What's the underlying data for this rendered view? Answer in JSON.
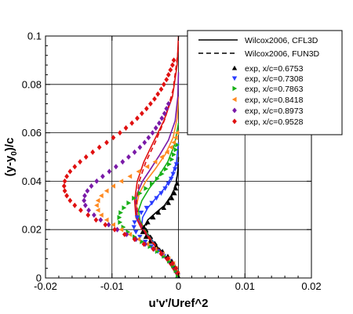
{
  "chart_data": {
    "type": "line",
    "title": "",
    "xlabel": "u'v'/Uref^2",
    "ylabel_parts": [
      "(y-y",
      "0",
      ")/c"
    ],
    "xlim": [
      -0.02,
      0.02
    ],
    "ylim": [
      0,
      0.1
    ],
    "xticks": [
      -0.02,
      -0.01,
      0,
      0.01,
      0.02
    ],
    "xtick_labels": [
      "-0.02",
      "-0.01",
      "0",
      "0.01",
      "0.02"
    ],
    "yticks": [
      0,
      0.02,
      0.04,
      0.06,
      0.08,
      0.1
    ],
    "ytick_labels": [
      "0",
      "0.02",
      "0.04",
      "0.06",
      "0.08",
      "0.1"
    ],
    "grid": true,
    "legend_position": "top-right",
    "series": [
      {
        "name": "exp, x/c=0.6753",
        "kind": "scatter",
        "marker": "triangle-up",
        "color": "#000000",
        "x": [
          -0.0001,
          -0.0003,
          -0.0006,
          -0.001,
          -0.0016,
          -0.0024,
          -0.0033,
          -0.0043,
          -0.0049,
          -0.0054,
          -0.0052,
          -0.0046,
          -0.0038,
          -0.003,
          -0.0022,
          -0.0015,
          -0.001,
          -0.0006,
          -0.0004,
          -0.0002
        ],
        "y": [
          0.001,
          0.003,
          0.005,
          0.007,
          0.009,
          0.011,
          0.013,
          0.015,
          0.017,
          0.019,
          0.021,
          0.023,
          0.025,
          0.027,
          0.029,
          0.031,
          0.033,
          0.035,
          0.037,
          0.039
        ]
      },
      {
        "name": "exp, x/c=0.7308",
        "kind": "scatter",
        "marker": "triangle-down",
        "color": "#2a3cff",
        "x": [
          -0.0001,
          -0.0004,
          -0.0008,
          -0.0014,
          -0.0022,
          -0.0031,
          -0.0041,
          -0.005,
          -0.0058,
          -0.0064,
          -0.0067,
          -0.0066,
          -0.0062,
          -0.0056,
          -0.0048,
          -0.004,
          -0.0033,
          -0.0026,
          -0.002,
          -0.0015,
          -0.0011,
          -0.0008,
          -0.0005,
          -0.0003
        ],
        "y": [
          0.001,
          0.003,
          0.005,
          0.007,
          0.009,
          0.011,
          0.013,
          0.015,
          0.017,
          0.019,
          0.021,
          0.023,
          0.025,
          0.027,
          0.029,
          0.031,
          0.033,
          0.035,
          0.037,
          0.039,
          0.041,
          0.043,
          0.045,
          0.047
        ]
      },
      {
        "name": "exp, x/c=0.7863",
        "kind": "scatter",
        "marker": "triangle-right",
        "color": "#18b018",
        "x": [
          -0.0001,
          -0.0004,
          -0.0008,
          -0.0014,
          -0.0022,
          -0.0032,
          -0.0043,
          -0.0055,
          -0.0066,
          -0.0076,
          -0.0083,
          -0.0088,
          -0.0089,
          -0.0087,
          -0.0082,
          -0.0075,
          -0.0067,
          -0.0058,
          -0.0049,
          -0.004,
          -0.0032,
          -0.0025,
          -0.0019,
          -0.0014,
          -0.001,
          -0.0007,
          -0.0004,
          -0.0002
        ],
        "y": [
          0.001,
          0.003,
          0.005,
          0.007,
          0.009,
          0.011,
          0.013,
          0.015,
          0.017,
          0.019,
          0.021,
          0.023,
          0.025,
          0.027,
          0.029,
          0.031,
          0.033,
          0.035,
          0.037,
          0.039,
          0.041,
          0.043,
          0.045,
          0.047,
          0.049,
          0.051,
          0.053,
          0.055
        ]
      },
      {
        "name": "exp, x/c=0.8418",
        "kind": "scatter",
        "marker": "triangle-left",
        "color": "#ff8a22",
        "x": [
          -0.0001,
          -0.0004,
          -0.0008,
          -0.0015,
          -0.0024,
          -0.0035,
          -0.0047,
          -0.006,
          -0.0073,
          -0.0086,
          -0.0098,
          -0.0108,
          -0.0116,
          -0.0121,
          -0.0123,
          -0.0121,
          -0.0116,
          -0.0108,
          -0.0098,
          -0.0086,
          -0.0073,
          -0.006,
          -0.0047,
          -0.0035,
          -0.0025,
          -0.0017,
          -0.0011,
          -0.0007,
          -0.0004,
          -0.0002
        ],
        "y": [
          0.002,
          0.004,
          0.006,
          0.008,
          0.01,
          0.012,
          0.014,
          0.016,
          0.018,
          0.02,
          0.022,
          0.024,
          0.026,
          0.028,
          0.03,
          0.032,
          0.034,
          0.036,
          0.038,
          0.04,
          0.042,
          0.044,
          0.046,
          0.048,
          0.05,
          0.052,
          0.054,
          0.056,
          0.058,
          0.06
        ]
      },
      {
        "name": "exp, x/c=0.8973",
        "kind": "scatter",
        "marker": "diamond",
        "color": "#7a1aa8",
        "x": [
          -0.0001,
          -0.0004,
          -0.0009,
          -0.0016,
          -0.0025,
          -0.0037,
          -0.005,
          -0.0064,
          -0.0078,
          -0.0092,
          -0.0105,
          -0.0117,
          -0.0127,
          -0.0135,
          -0.014,
          -0.0142,
          -0.0141,
          -0.0137,
          -0.0131,
          -0.0123,
          -0.0114,
          -0.0104,
          -0.0094,
          -0.0084,
          -0.0075,
          -0.0066,
          -0.0058,
          -0.0051,
          -0.0045,
          -0.0039,
          -0.0034,
          -0.0029,
          -0.0025,
          -0.0021,
          -0.0018,
          -0.0015
        ],
        "y": [
          0.002,
          0.004,
          0.006,
          0.008,
          0.01,
          0.012,
          0.014,
          0.016,
          0.018,
          0.02,
          0.022,
          0.024,
          0.026,
          0.028,
          0.03,
          0.032,
          0.034,
          0.036,
          0.038,
          0.04,
          0.042,
          0.044,
          0.046,
          0.048,
          0.05,
          0.052,
          0.054,
          0.056,
          0.058,
          0.06,
          0.062,
          0.064,
          0.066,
          0.068,
          0.07,
          0.072
        ]
      },
      {
        "name": "exp, x/c=0.9528",
        "kind": "scatter",
        "marker": "diamond",
        "color": "#e01010",
        "x": [
          -0.0001,
          -0.0004,
          -0.0009,
          -0.0016,
          -0.0026,
          -0.0038,
          -0.0052,
          -0.0066,
          -0.0081,
          -0.0096,
          -0.011,
          -0.0124,
          -0.0136,
          -0.0147,
          -0.0156,
          -0.0163,
          -0.0168,
          -0.0171,
          -0.0172,
          -0.0171,
          -0.0168,
          -0.0163,
          -0.0156,
          -0.0148,
          -0.0139,
          -0.0129,
          -0.0119,
          -0.0108,
          -0.0098,
          -0.0088,
          -0.0079,
          -0.007,
          -0.0062,
          -0.0055,
          -0.0048,
          -0.0042,
          -0.0036,
          -0.0031,
          -0.0026,
          -0.0022,
          -0.0018,
          -0.0015,
          -0.0012,
          -0.0009,
          -0.0007
        ],
        "y": [
          0.002,
          0.004,
          0.006,
          0.008,
          0.01,
          0.012,
          0.014,
          0.016,
          0.018,
          0.02,
          0.022,
          0.024,
          0.026,
          0.028,
          0.03,
          0.032,
          0.034,
          0.036,
          0.038,
          0.04,
          0.042,
          0.044,
          0.046,
          0.048,
          0.05,
          0.052,
          0.054,
          0.056,
          0.058,
          0.06,
          0.062,
          0.064,
          0.066,
          0.068,
          0.07,
          0.072,
          0.074,
          0.076,
          0.078,
          0.08,
          0.082,
          0.084,
          0.086,
          0.088,
          0.09
        ]
      },
      {
        "name": "Wilcox2006, CFL3D",
        "kind": "line",
        "dash": "solid",
        "color": "#000000",
        "group": [
          {
            "color": "#000000",
            "x": [
              0,
              -0.001,
              -0.0024,
              -0.0038,
              -0.0048,
              -0.0052,
              -0.0046,
              -0.0034,
              -0.0021,
              -0.0011,
              -0.0004,
              -0.0001,
              0
            ],
            "y": [
              0,
              0.005,
              0.01,
              0.015,
              0.019,
              0.021,
              0.024,
              0.027,
              0.03,
              0.034,
              0.038,
              0.044,
              0.05
            ]
          },
          {
            "color": "#2a3cff",
            "x": [
              0,
              -0.001,
              -0.0024,
              -0.0038,
              -0.0049,
              -0.0055,
              -0.0054,
              -0.0046,
              -0.0034,
              -0.0021,
              -0.001,
              -0.0003,
              0
            ],
            "y": [
              0,
              0.005,
              0.01,
              0.015,
              0.019,
              0.022,
              0.025,
              0.029,
              0.033,
              0.037,
              0.042,
              0.048,
              0.056
            ]
          },
          {
            "color": "#18b018",
            "x": [
              0,
              -0.001,
              -0.0024,
              -0.0039,
              -0.0051,
              -0.0058,
              -0.006,
              -0.0055,
              -0.0044,
              -0.003,
              -0.0016,
              -0.0006,
              0
            ],
            "y": [
              0,
              0.005,
              0.01,
              0.015,
              0.02,
              0.024,
              0.028,
              0.032,
              0.037,
              0.042,
              0.048,
              0.055,
              0.064
            ]
          },
          {
            "color": "#ff8a22",
            "x": [
              0,
              -0.0011,
              -0.0025,
              -0.004,
              -0.0053,
              -0.0061,
              -0.0063,
              -0.0059,
              -0.0049,
              -0.0035,
              -0.002,
              -0.0008,
              -0.0002,
              0
            ],
            "y": [
              0,
              0.005,
              0.01,
              0.015,
              0.02,
              0.025,
              0.03,
              0.035,
              0.04,
              0.045,
              0.051,
              0.058,
              0.066,
              0.075
            ]
          },
          {
            "color": "#7a1aa8",
            "x": [
              0,
              -0.0011,
              -0.0025,
              -0.004,
              -0.0053,
              -0.0062,
              -0.0065,
              -0.0062,
              -0.0054,
              -0.0042,
              -0.0028,
              -0.0015,
              -0.0005,
              -0.0001,
              0
            ],
            "y": [
              0,
              0.005,
              0.01,
              0.015,
              0.02,
              0.025,
              0.03,
              0.035,
              0.04,
              0.045,
              0.051,
              0.057,
              0.065,
              0.075,
              0.085
            ]
          },
          {
            "color": "#e01010",
            "x": [
              0,
              -0.0011,
              -0.0025,
              -0.0041,
              -0.0055,
              -0.0064,
              -0.0066,
              -0.0062,
              -0.0052,
              -0.0038,
              -0.0022,
              -0.0009,
              -0.0002,
              0
            ],
            "y": [
              0,
              0.005,
              0.01,
              0.015,
              0.02,
              0.025,
              0.032,
              0.04,
              0.048,
              0.056,
              0.065,
              0.075,
              0.088,
              0.1
            ]
          }
        ]
      },
      {
        "name": "Wilcox2006, FUN3D",
        "kind": "line",
        "dash": "dashed",
        "color": "#000000",
        "group": [
          {
            "color": "#000000",
            "x": [
              0,
              -0.001,
              -0.0023,
              -0.0036,
              -0.0046,
              -0.005,
              -0.0044,
              -0.0032,
              -0.002,
              -0.001,
              -0.0004,
              0
            ],
            "y": [
              0,
              0.005,
              0.01,
              0.015,
              0.019,
              0.021,
              0.024,
              0.027,
              0.03,
              0.034,
              0.039,
              0.046
            ]
          },
          {
            "color": "#e01010",
            "x": [
              0,
              -0.0011,
              -0.0024,
              -0.0039,
              -0.0052,
              -0.0061,
              -0.0063,
              -0.0059,
              -0.0049,
              -0.0035,
              -0.002,
              -0.0008,
              0
            ],
            "y": [
              0,
              0.005,
              0.01,
              0.015,
              0.02,
              0.025,
              0.032,
              0.04,
              0.048,
              0.056,
              0.066,
              0.078,
              0.095
            ]
          }
        ]
      }
    ],
    "legend": [
      {
        "label": "Wilcox2006, CFL3D",
        "kind": "line",
        "dash": "solid",
        "color": "#000000"
      },
      {
        "label": "Wilcox2006, FUN3D",
        "kind": "line",
        "dash": "dashed",
        "color": "#000000"
      },
      {
        "label": "exp, x/c=0.6753",
        "kind": "marker",
        "marker": "triangle-up",
        "color": "#000000"
      },
      {
        "label": "exp, x/c=0.7308",
        "kind": "marker",
        "marker": "triangle-down",
        "color": "#2a3cff"
      },
      {
        "label": "exp, x/c=0.7863",
        "kind": "marker",
        "marker": "triangle-right",
        "color": "#18b018"
      },
      {
        "label": "exp, x/c=0.8418",
        "kind": "marker",
        "marker": "triangle-left",
        "color": "#ff8a22"
      },
      {
        "label": "exp, x/c=0.8973",
        "kind": "marker",
        "marker": "diamond",
        "color": "#7a1aa8"
      },
      {
        "label": "exp, x/c=0.9528",
        "kind": "marker",
        "marker": "diamond",
        "color": "#e01010"
      }
    ]
  }
}
